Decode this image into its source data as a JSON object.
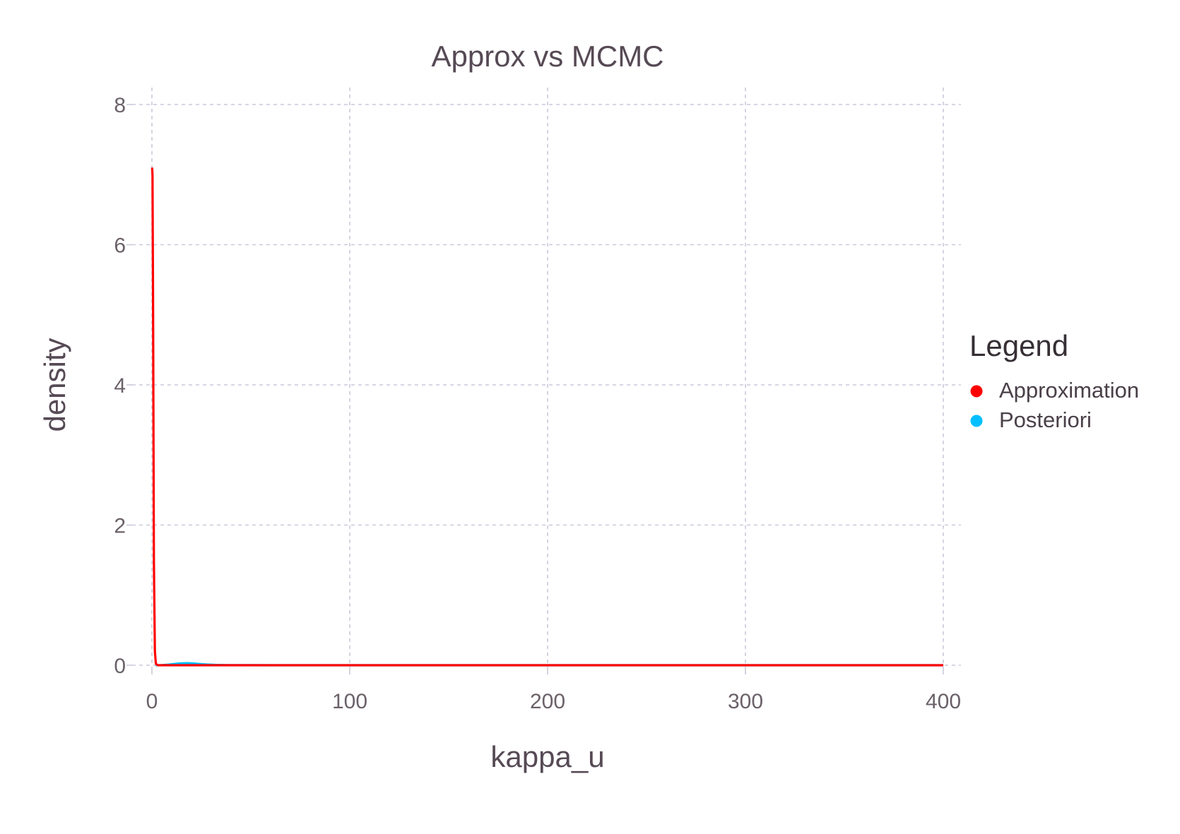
{
  "chart_data": {
    "type": "line",
    "title": "Approx vs MCMC",
    "xlabel": "kappa_u",
    "ylabel": "density",
    "xlim": [
      0,
      400
    ],
    "ylim": [
      0,
      8
    ],
    "x_ticks": [
      "0",
      "100",
      "200",
      "300",
      "400"
    ],
    "x_tick_values": [
      0,
      100,
      200,
      300,
      400
    ],
    "y_ticks": [
      "0",
      "2",
      "4",
      "6",
      "8"
    ],
    "y_tick_values": [
      0,
      2,
      4,
      6,
      8
    ],
    "grid": true,
    "legend": {
      "title": "Legend",
      "placement": "right"
    },
    "series": [
      {
        "name": "Posteriori",
        "color": "#00bfff",
        "x": [
          2,
          5,
          8,
          10,
          12,
          14,
          16,
          18,
          20,
          22,
          25,
          28,
          32,
          38,
          45,
          60,
          100,
          200,
          300,
          400
        ],
        "y": [
          0,
          0.002,
          0.008,
          0.014,
          0.02,
          0.025,
          0.028,
          0.029,
          0.027,
          0.023,
          0.016,
          0.01,
          0.005,
          0.002,
          0.001,
          0,
          0,
          0,
          0,
          0
        ]
      },
      {
        "name": "Approximation",
        "color": "#ff0000",
        "x": [
          0.1,
          0.3,
          0.6,
          1,
          1.5,
          2,
          3,
          5,
          10,
          50,
          100,
          200,
          300,
          400
        ],
        "y": [
          7.1,
          7.0,
          5.0,
          1.5,
          0.2,
          0.02,
          0,
          0,
          0,
          0,
          0,
          0,
          0,
          0
        ]
      }
    ]
  }
}
